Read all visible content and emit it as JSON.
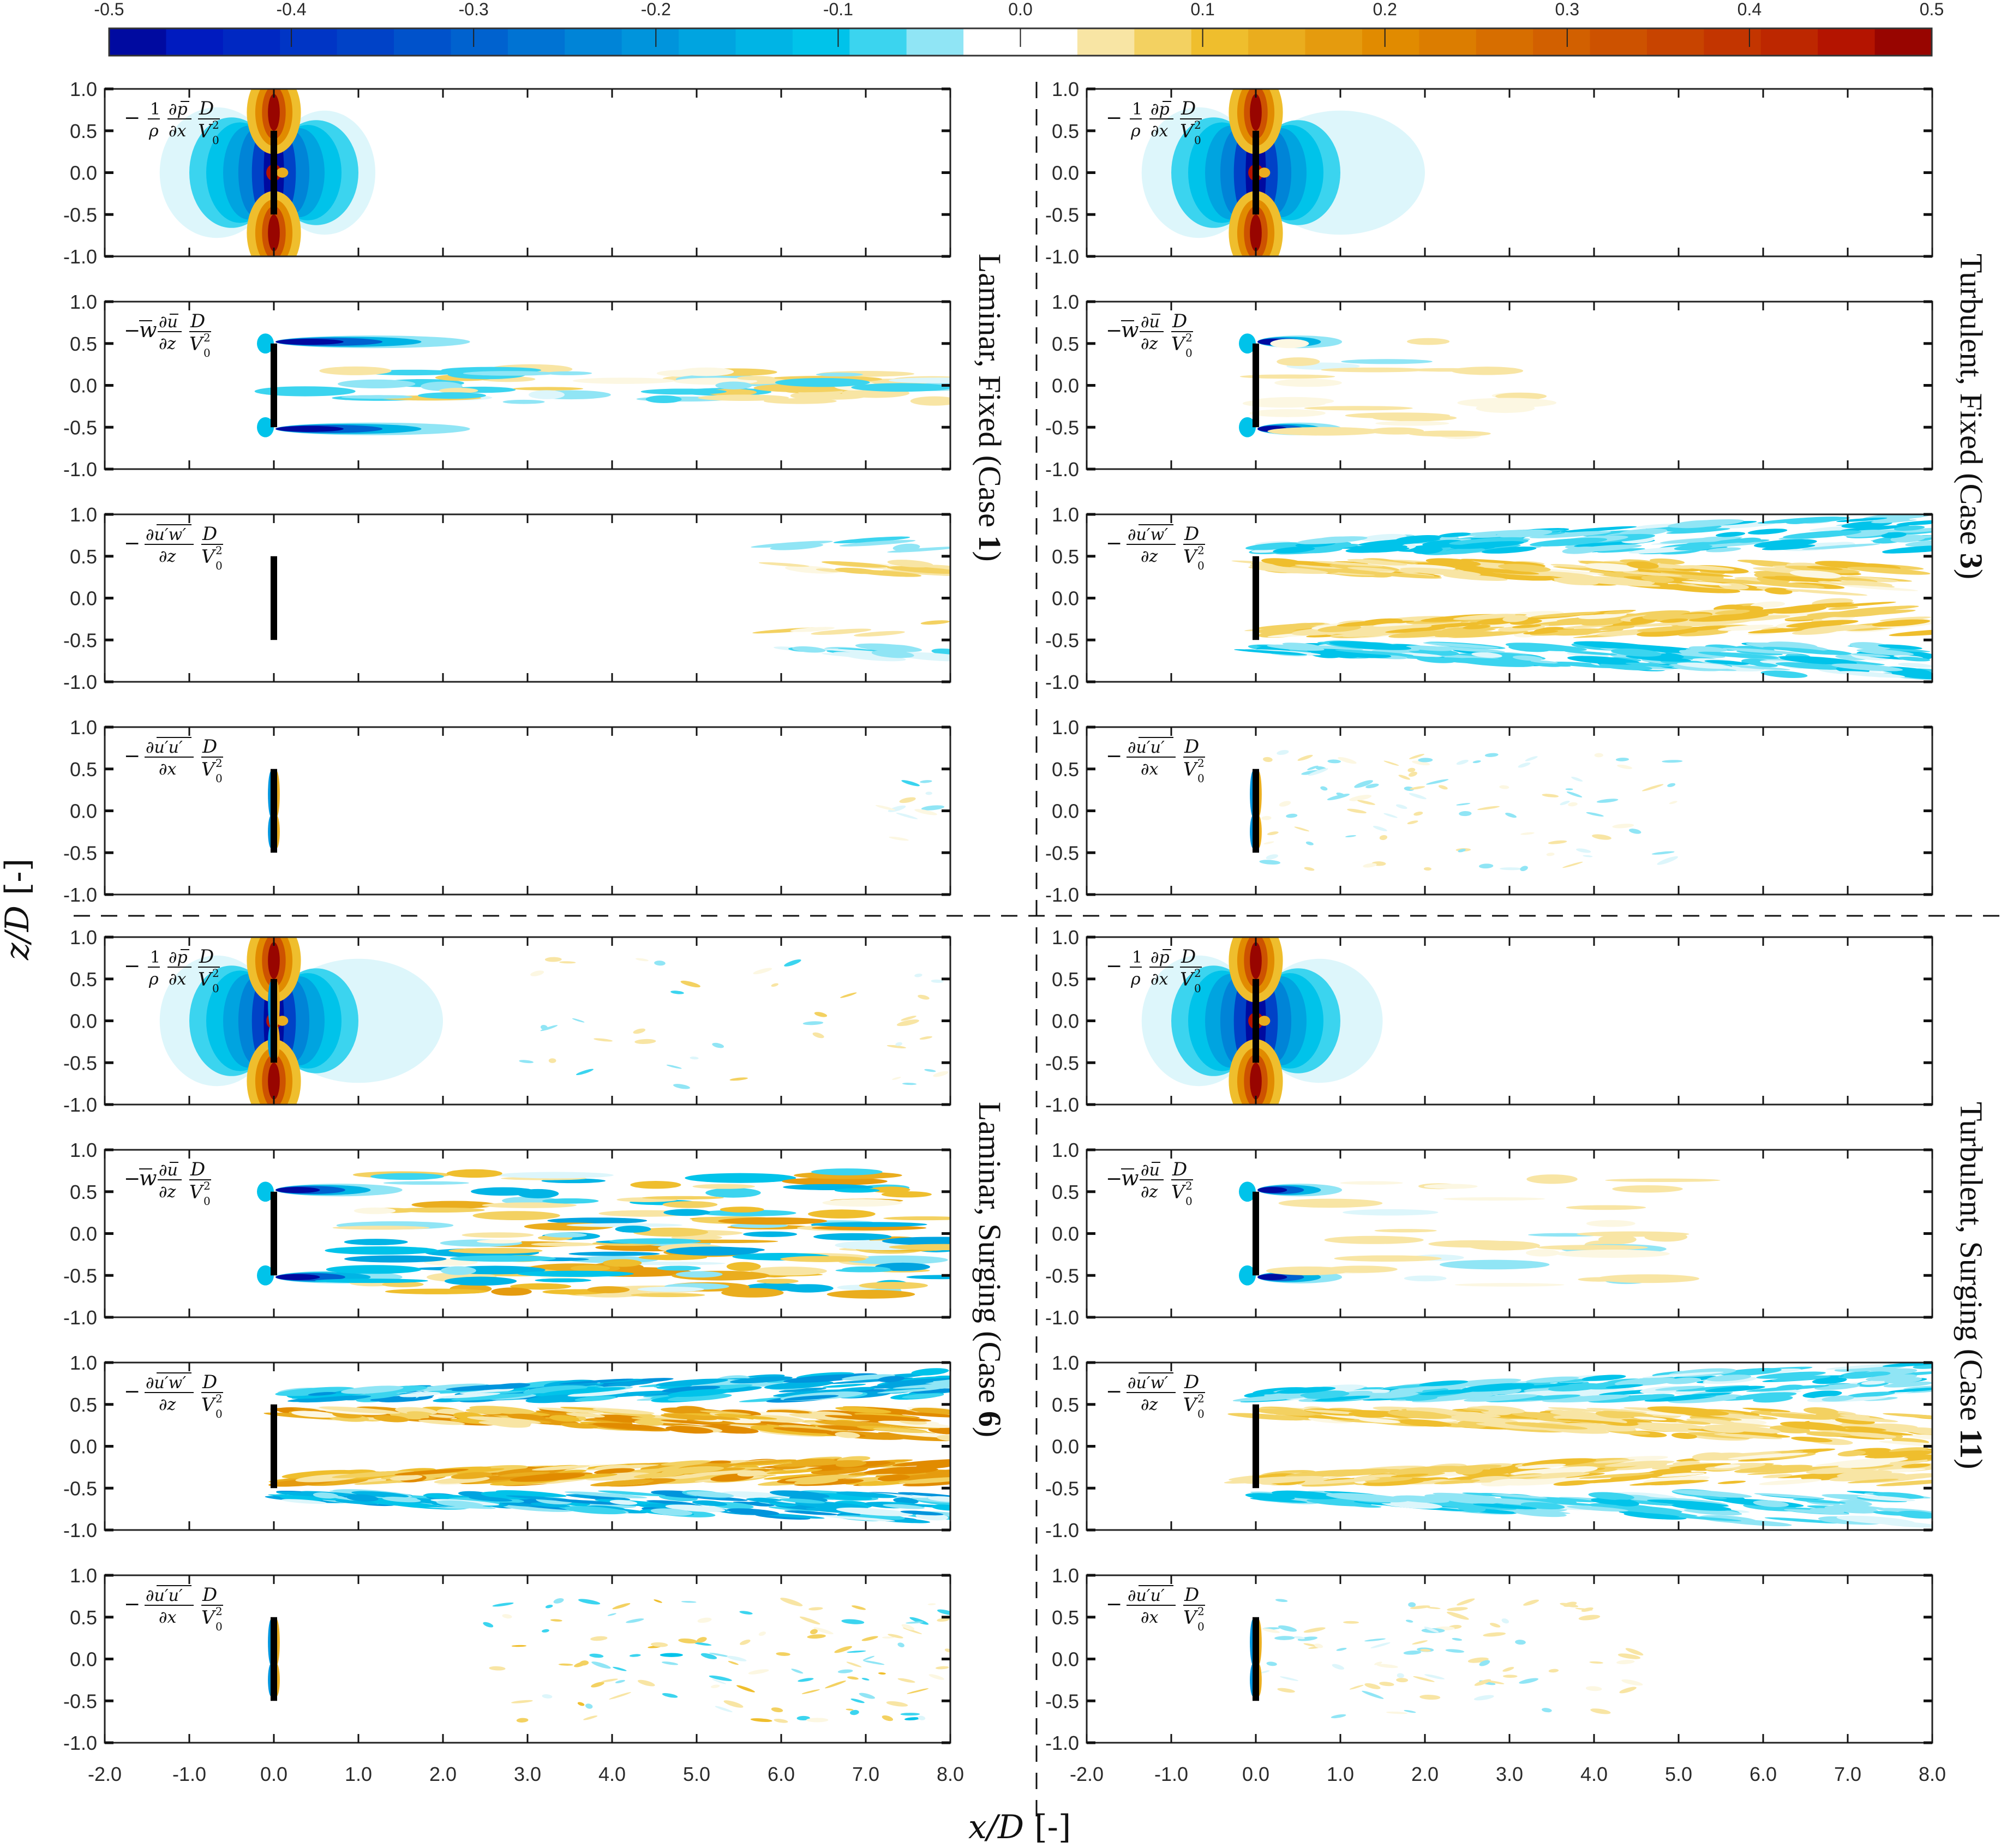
{
  "chart_data": {
    "type": "heatmap",
    "title": "",
    "description": "Normalized streamwise momentum budget terms behind a disc (fixed vs surging, laminar vs turbulent inflow)",
    "xlabel": "x/D [-]",
    "ylabel": "z/D [-]",
    "xlim": [
      -2.0,
      8.0
    ],
    "ylim": [
      -1.0,
      1.0
    ],
    "x_ticks": [
      "-2.0",
      "-1.0",
      "0.0",
      "1.0",
      "2.0",
      "3.0",
      "4.0",
      "5.0",
      "6.0",
      "7.0",
      "8.0"
    ],
    "y_ticks": [
      "1.0",
      "0.5",
      "0.0",
      "-0.5",
      "-1.0"
    ],
    "grid": false,
    "colorbar": {
      "placement": "top",
      "range": [
        -0.5,
        0.5
      ],
      "ticks": [
        "-0.5",
        "-0.4",
        "-0.3",
        "-0.2",
        "-0.1",
        "0.0",
        "0.1",
        "0.2",
        "0.3",
        "0.4",
        "0.5"
      ],
      "levels": 32,
      "colors": {
        "neg_max": "#000080",
        "neg_strong": "#0020c0",
        "neg_mid": "#0070d0",
        "neg_light": "#00c0e8",
        "neg_faint": "#c8f0f8",
        "zero": "#ffffff",
        "pos_faint": "#faeec0",
        "pos_light": "#f0c030",
        "pos_mid": "#e08c00",
        "pos_strong": "#c03000",
        "pos_max": "#800000"
      }
    },
    "disc": {
      "x": 0.0,
      "z_range": [
        -0.5,
        0.5
      ],
      "color": "#000000"
    },
    "terms": [
      {
        "id": "pressure",
        "label_parts": [
          "−",
          "1",
          "ρ",
          "∂p̄",
          "∂x",
          "D",
          "V",
          "0",
          "2"
        ],
        "label_text": "-(1/ρ) ∂p̄/∂x · D/V0²"
      },
      {
        "id": "mean_advection",
        "label_text": "-w̄ ∂ū/∂z · D/V0²"
      },
      {
        "id": "reynolds_uw",
        "label_text": "-∂(u'w')‾/∂z · D/V0²"
      },
      {
        "id": "reynolds_uu",
        "label_text": "-∂(u'u')‾/∂x · D/V0²"
      }
    ],
    "cases": [
      {
        "position": "top-left",
        "label": "Laminar, Fixed (Case ",
        "number": "1",
        "label_end": ")",
        "summary": {
          "pressure": "strong blue (-0.5) lobes either side of disc, red/orange (+0.5) at disc tips z=±0.5, light blue region extends to x≈1.2",
          "mean_advection": "thin dark-blue shear layers at z≈±0.5 from x=0 to x≈2.3, weak alternating streaks along z≈0 to x=8",
          "reynolds_uw": "almost zero until x≈6, weak yellow/blue streaks at z≈±0.5 near x=6–8",
          "reynolds_uu": "thin blue/yellow band hugging the disc only"
        }
      },
      {
        "position": "top-right",
        "label": "Turbulent, Fixed (Case ",
        "number": "3",
        "label_end": ")",
        "summary": {
          "pressure": "similar to Case 1, light blue wake to x≈2.0",
          "mean_advection": "shortened dark-blue shear layers to x≈1.0, weak yellow patches to x≈3",
          "reynolds_uw": "broad diverging yellow (+0.1) bands inside and blue (-0.1) bands outside shear layers, from x=0 to x=8",
          "reynolds_uu": "sparse weak blue/yellow specks"
        }
      },
      {
        "position": "bottom-left",
        "label": "Laminar, Surging (Case ",
        "number": "6",
        "label_end": ")",
        "summary": {
          "pressure": "similar lobes, light blue wake to x≈2.0, small patches downstream",
          "mean_advection": "dark-blue shear layers to x≈1.5, then patchy yellow/blue structures x=2–8",
          "reynolds_uw": "intense alternating yellow/blue bands at z≈±0.5 from x≈0.5 to x=8",
          "reynolds_uu": "scattered weak blue/yellow specks mainly x>3"
        }
      },
      {
        "position": "bottom-right",
        "label": "Turbulent, Surging (Case ",
        "number": "11",
        "label_end": ")",
        "summary": {
          "pressure": "similar to Case 3, light blue wake to x≈1.5",
          "mean_advection": "dark-blue shear layers to x≈1.0, weak yellow band near z≈-0.5 to x≈5",
          "reynolds_uw": "diverging yellow/blue bands similar to Case 3, out to x=8",
          "reynolds_uu": "sparse weak specks"
        }
      }
    ]
  }
}
